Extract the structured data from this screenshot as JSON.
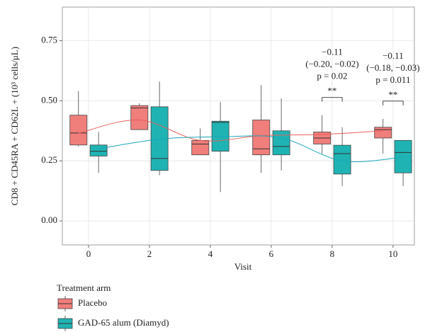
{
  "chart_data": {
    "type": "box",
    "x_label": "Visit",
    "y_label": "CD8 + CD45RA + CD62L + (10³ cells/μL)",
    "x": [
      0,
      2,
      4,
      6,
      8,
      10
    ],
    "xlim": [
      -0.86,
      10.7
    ],
    "xticks": [
      0,
      2,
      4,
      6,
      8,
      10
    ],
    "ylim": [
      -0.1,
      0.89
    ],
    "yticks": [
      {
        "value": 0,
        "label": "0.00"
      },
      {
        "value": 0.25,
        "label": "0.25"
      },
      {
        "value": 0.5,
        "label": "0.50"
      },
      {
        "value": 0.75,
        "label": "0.75"
      }
    ],
    "grid": true,
    "legend_title": "Treatment arm",
    "legend_position": "bottom-left",
    "series": [
      {
        "name": "Placebo",
        "color": "#f07e7b",
        "line_color": "#e8605c",
        "whislo": [
          0.31,
          0.38,
          0.275,
          0.2,
          0.28,
          0.28
        ],
        "q1": [
          0.316,
          0.38,
          0.275,
          0.275,
          0.32,
          0.345
        ],
        "median": [
          0.366,
          0.47,
          0.32,
          0.3,
          0.345,
          0.38
        ],
        "q3": [
          0.44,
          0.48,
          0.335,
          0.42,
          0.37,
          0.39
        ],
        "whishi": [
          0.54,
          0.49,
          0.385,
          0.565,
          0.44,
          0.425
        ],
        "smooth": [
          0.365,
          0.42,
          0.335,
          0.355,
          0.36,
          0.375
        ]
      },
      {
        "name": "GAD-65 alum (Diamyd)",
        "color": "#1fb3b3",
        "line_color": "#1aa6b8",
        "whislo": [
          0.2,
          0.19,
          0.12,
          0.21,
          0.145,
          0.145
        ],
        "q1": [
          0.27,
          0.21,
          0.29,
          0.275,
          0.195,
          0.2
        ],
        "median": [
          0.29,
          0.26,
          0.41,
          0.31,
          0.28,
          0.285
        ],
        "q3": [
          0.316,
          0.475,
          0.415,
          0.375,
          0.315,
          0.335
        ],
        "whishi": [
          0.37,
          0.58,
          0.495,
          0.51,
          0.39,
          0.335
        ],
        "smooth": [
          0.3,
          0.34,
          0.35,
          0.345,
          0.25,
          0.265
        ]
      }
    ],
    "annotations": [
      {
        "x": 8,
        "text": [
          "−0.11",
          "(−0.20, −0.02)",
          "p = 0.02"
        ],
        "sig": "**"
      },
      {
        "x": 10,
        "text": [
          "−0.11",
          "(−0.18, −0.03)",
          "p = 0.011"
        ],
        "sig": "**"
      }
    ]
  }
}
